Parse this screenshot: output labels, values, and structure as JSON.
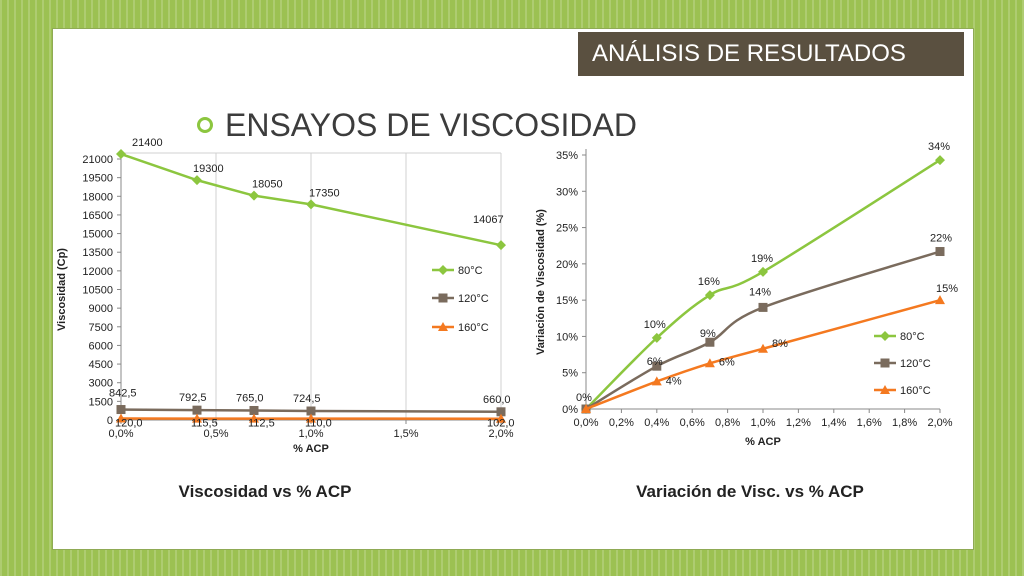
{
  "slide": {
    "section_title": "ANÁLISIS DE RESULTADOS",
    "heading": "ENSAYOS DE VISCOSIDAD"
  },
  "colors": {
    "series_80": "#8cc63f",
    "series_120": "#7a6b5d",
    "series_160": "#f47920",
    "banner_bg": "#5a5040",
    "background": "#9cc152"
  },
  "chart_data": [
    {
      "type": "line",
      "title": "",
      "caption": "Viscosidad vs % ACP",
      "xlabel": "% ACP",
      "ylabel": "Viscosidad (Cp)",
      "xlim": [
        0,
        2
      ],
      "ylim": [
        0,
        21000
      ],
      "xticks": [
        0,
        0.5,
        1,
        1.5,
        2
      ],
      "xtick_labels": [
        "0,0%",
        "0,5%",
        "1,0%",
        "1,5%",
        "2,0%"
      ],
      "yticks": [
        0,
        1500,
        3000,
        4500,
        6000,
        7500,
        9000,
        10500,
        12000,
        13500,
        15000,
        16500,
        18000,
        19500,
        21000
      ],
      "ytick_labels": [
        "0",
        "1500",
        "3000",
        "4500",
        "6000",
        "7500",
        "9000",
        "10500",
        "12000",
        "13500",
        "15000",
        "16500",
        "18000",
        "19500",
        "21000"
      ],
      "grid": "vertical",
      "legend": "right",
      "series": [
        {
          "name": "80°C",
          "marker": "diamond",
          "color": "#8cc63f",
          "x": [
            0,
            0.4,
            0.7,
            1.0,
            2.0
          ],
          "y": [
            21400,
            19300,
            18050,
            17350,
            14067
          ],
          "labels": [
            "21400",
            "19300",
            "18050",
            "17350",
            "14067"
          ]
        },
        {
          "name": "120°C",
          "marker": "square",
          "color": "#7a6b5d",
          "x": [
            0,
            0.4,
            0.7,
            1.0,
            2.0
          ],
          "y": [
            842.5,
            792.5,
            765,
            724.5,
            660
          ],
          "labels": [
            "842,5",
            "792,5",
            "765,0",
            "724,5",
            "660,0"
          ]
        },
        {
          "name": "160°C",
          "marker": "triangle",
          "color": "#f47920",
          "x": [
            0,
            0.4,
            0.7,
            1.0,
            2.0
          ],
          "y": [
            120,
            115.5,
            112.5,
            110,
            102
          ],
          "labels": [
            "120,0",
            "115,5",
            "112,5",
            "110,0",
            "102,0"
          ]
        }
      ]
    },
    {
      "type": "line",
      "title": "",
      "caption": "Variación de Visc. vs % ACP",
      "xlabel": "% ACP",
      "ylabel": "Variación de Viscosidad (%)",
      "xlim": [
        0,
        2
      ],
      "ylim": [
        0,
        35
      ],
      "xticks": [
        0,
        0.2,
        0.4,
        0.6,
        0.8,
        1.0,
        1.2,
        1.4,
        1.6,
        1.8,
        2.0
      ],
      "xtick_labels": [
        "0,0%",
        "0,2%",
        "0,4%",
        "0,6%",
        "0,8%",
        "1,0%",
        "1,2%",
        "1,4%",
        "1,6%",
        "1,8%",
        "2,0%"
      ],
      "yticks": [
        0,
        5,
        10,
        15,
        20,
        25,
        30,
        35
      ],
      "ytick_labels": [
        "0%",
        "5%",
        "10%",
        "15%",
        "20%",
        "25%",
        "30%",
        "35%"
      ],
      "grid": "none",
      "legend": "right",
      "series": [
        {
          "name": "80°C",
          "marker": "diamond",
          "color": "#8cc63f",
          "x": [
            0,
            0.4,
            0.7,
            1.0,
            2.0
          ],
          "y": [
            0,
            9.8,
            15.7,
            18.9,
            34.3
          ],
          "labels": [
            "0%",
            "10%",
            "16%",
            "19%",
            "34%"
          ]
        },
        {
          "name": "120°C",
          "marker": "square",
          "color": "#7a6b5d",
          "x": [
            0,
            0.4,
            0.7,
            1.0,
            2.0
          ],
          "y": [
            0,
            5.9,
            9.2,
            14.0,
            21.7
          ],
          "labels": [
            "",
            "6%",
            "9%",
            "14%",
            "22%"
          ]
        },
        {
          "name": "160°C",
          "marker": "triangle",
          "color": "#f47920",
          "x": [
            0,
            0.4,
            0.7,
            1.0,
            2.0
          ],
          "y": [
            0,
            3.8,
            6.3,
            8.3,
            15.0
          ],
          "labels": [
            "",
            "4%",
            "6%",
            "8%",
            "15%"
          ]
        }
      ]
    }
  ]
}
